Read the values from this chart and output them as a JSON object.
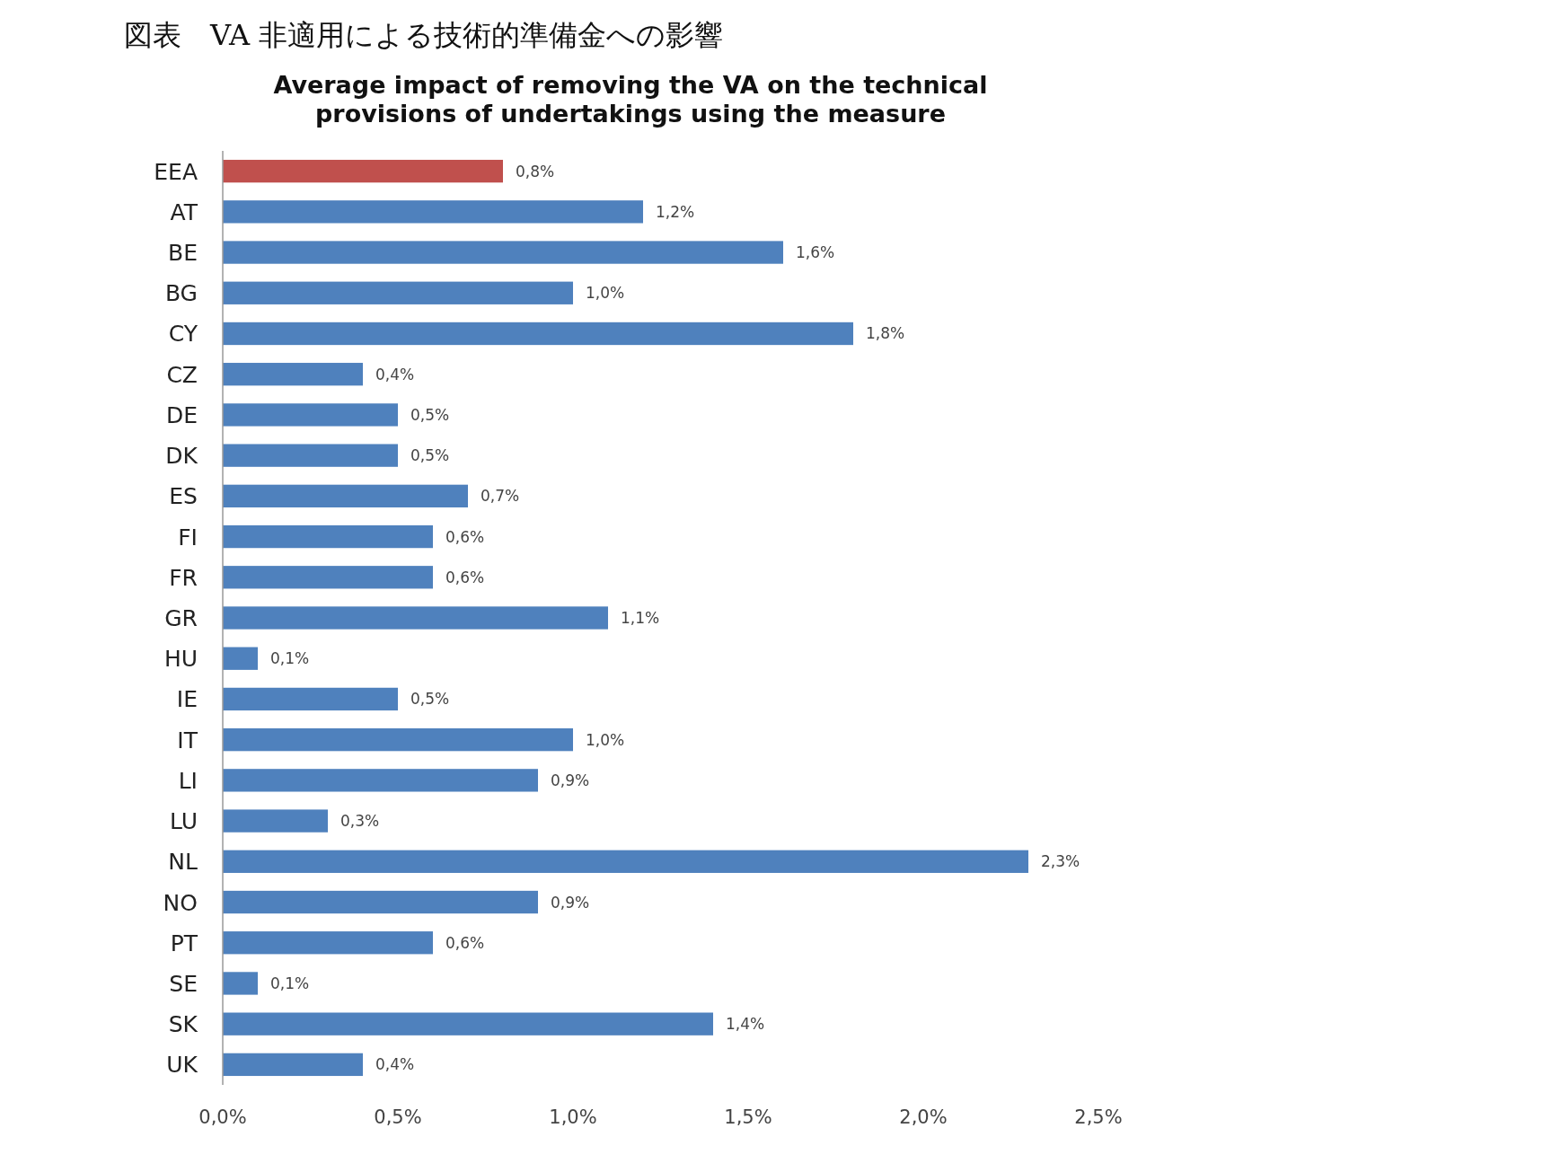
{
  "chart_data": {
    "type": "bar",
    "orientation": "horizontal",
    "title": "図表　VA 非適用による技術的準備金への影響",
    "subtitle": "Average impact of removing the VA on the technical provisions of undertakings using the measure",
    "categories": [
      "EEA",
      "AT",
      "BE",
      "BG",
      "CY",
      "CZ",
      "DE",
      "DK",
      "ES",
      "FI",
      "FR",
      "GR",
      "HU",
      "IE",
      "IT",
      "LI",
      "LU",
      "NL",
      "NO",
      "PT",
      "SE",
      "SK",
      "UK"
    ],
    "values": [
      0.8,
      1.2,
      1.6,
      1.0,
      1.8,
      0.4,
      0.5,
      0.5,
      0.7,
      0.6,
      0.6,
      1.1,
      0.1,
      0.5,
      1.0,
      0.9,
      0.3,
      2.3,
      0.9,
      0.6,
      0.1,
      1.4,
      0.4
    ],
    "value_labels": [
      "0,8%",
      "1,2%",
      "1,6%",
      "1,0%",
      "1,8%",
      "0,4%",
      "0,5%",
      "0,5%",
      "0,7%",
      "0,6%",
      "0,6%",
      "1,1%",
      "0,1%",
      "0,5%",
      "1,0%",
      "0,9%",
      "0,3%",
      "2,3%",
      "0,9%",
      "0,6%",
      "0,1%",
      "1,4%",
      "0,4%"
    ],
    "colors": [
      "#c0504d",
      "#4f81bd",
      "#4f81bd",
      "#4f81bd",
      "#4f81bd",
      "#4f81bd",
      "#4f81bd",
      "#4f81bd",
      "#4f81bd",
      "#4f81bd",
      "#4f81bd",
      "#4f81bd",
      "#4f81bd",
      "#4f81bd",
      "#4f81bd",
      "#4f81bd",
      "#4f81bd",
      "#4f81bd",
      "#4f81bd",
      "#4f81bd",
      "#4f81bd",
      "#4f81bd",
      "#4f81bd"
    ],
    "xlim": [
      0,
      2.5
    ],
    "xticks": [
      {
        "value": 0,
        "label": "0,0%"
      },
      {
        "value": 0.5,
        "label": "0,5%"
      },
      {
        "value": 1,
        "label": "1,0%"
      },
      {
        "value": 1.5,
        "label": "1,5%"
      },
      {
        "value": 2,
        "label": "2,0%"
      },
      {
        "value": 2.5,
        "label": "2,5%"
      }
    ],
    "data_labels": true
  }
}
